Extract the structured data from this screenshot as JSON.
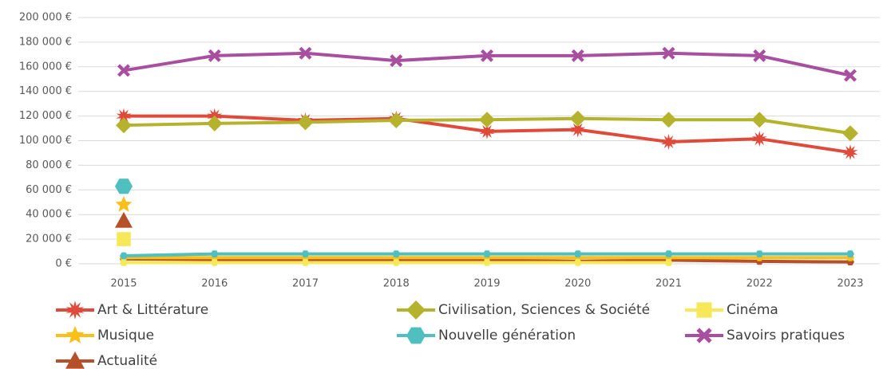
{
  "chart_data": {
    "type": "line",
    "categories": [
      "2015",
      "2016",
      "2017",
      "2018",
      "2019",
      "2020",
      "2021",
      "2022",
      "2023"
    ],
    "ylim": [
      0,
      200000
    ],
    "yticks": [
      {
        "value": 0,
        "label": "0 €"
      },
      {
        "value": 20000,
        "label": "20 000 €"
      },
      {
        "value": 40000,
        "label": "40 000 €"
      },
      {
        "value": 60000,
        "label": "60 000 €"
      },
      {
        "value": 80000,
        "label": "80 000 €"
      },
      {
        "value": 100000,
        "label": "100 000 €"
      },
      {
        "value": 120000,
        "label": "120 000 €"
      },
      {
        "value": 140000,
        "label": "140 000 €"
      },
      {
        "value": 160000,
        "label": "160 000 €"
      },
      {
        "value": 180000,
        "label": "180 000 €"
      },
      {
        "value": 200000,
        "label": "200 000 €"
      }
    ],
    "grid": true,
    "series": [
      {
        "name": "Art & Littérature",
        "color": "#e04a3a",
        "marker": "burst",
        "values": [
          120000,
          120000,
          116500,
          118000,
          107500,
          109000,
          99000,
          101500,
          90500
        ]
      },
      {
        "name": "Civilisation, Sciences & Société",
        "color": "#b5b32e",
        "marker": "diamond",
        "values": [
          112500,
          114000,
          115000,
          116500,
          117000,
          118000,
          117000,
          117000,
          106000
        ]
      },
      {
        "name": "Cinéma",
        "color": "#f7e85a",
        "marker": "square",
        "values": [
          1000,
          1000,
          1000,
          1000,
          1000,
          1000,
          1000,
          null,
          null
        ],
        "outlier": 20000
      },
      {
        "name": "Musique",
        "color": "#fbbf1a",
        "marker": "star",
        "values": [
          5000,
          5000,
          5000,
          5000,
          5000,
          5000,
          5000,
          5000,
          5000
        ],
        "outlier": 48000
      },
      {
        "name": "Nouvelle génération",
        "color": "#4fbfbf",
        "marker": "hexagon",
        "values": [
          6500,
          8000,
          8000,
          8000,
          8000,
          8000,
          8000,
          8000,
          8000
        ],
        "outlier": 63000
      },
      {
        "name": "Savoirs pratiques",
        "color": "#a84fa0",
        "marker": "x",
        "values": [
          157000,
          169000,
          171000,
          165000,
          169000,
          169000,
          171000,
          169000,
          153000
        ]
      },
      {
        "name": "Actualité",
        "color": "#b5502a",
        "marker": "triangle",
        "values": [
          4000,
          3500,
          3000,
          3000,
          3000,
          2000,
          3000,
          2000,
          1500
        ],
        "outlier": 35000
      }
    ]
  }
}
